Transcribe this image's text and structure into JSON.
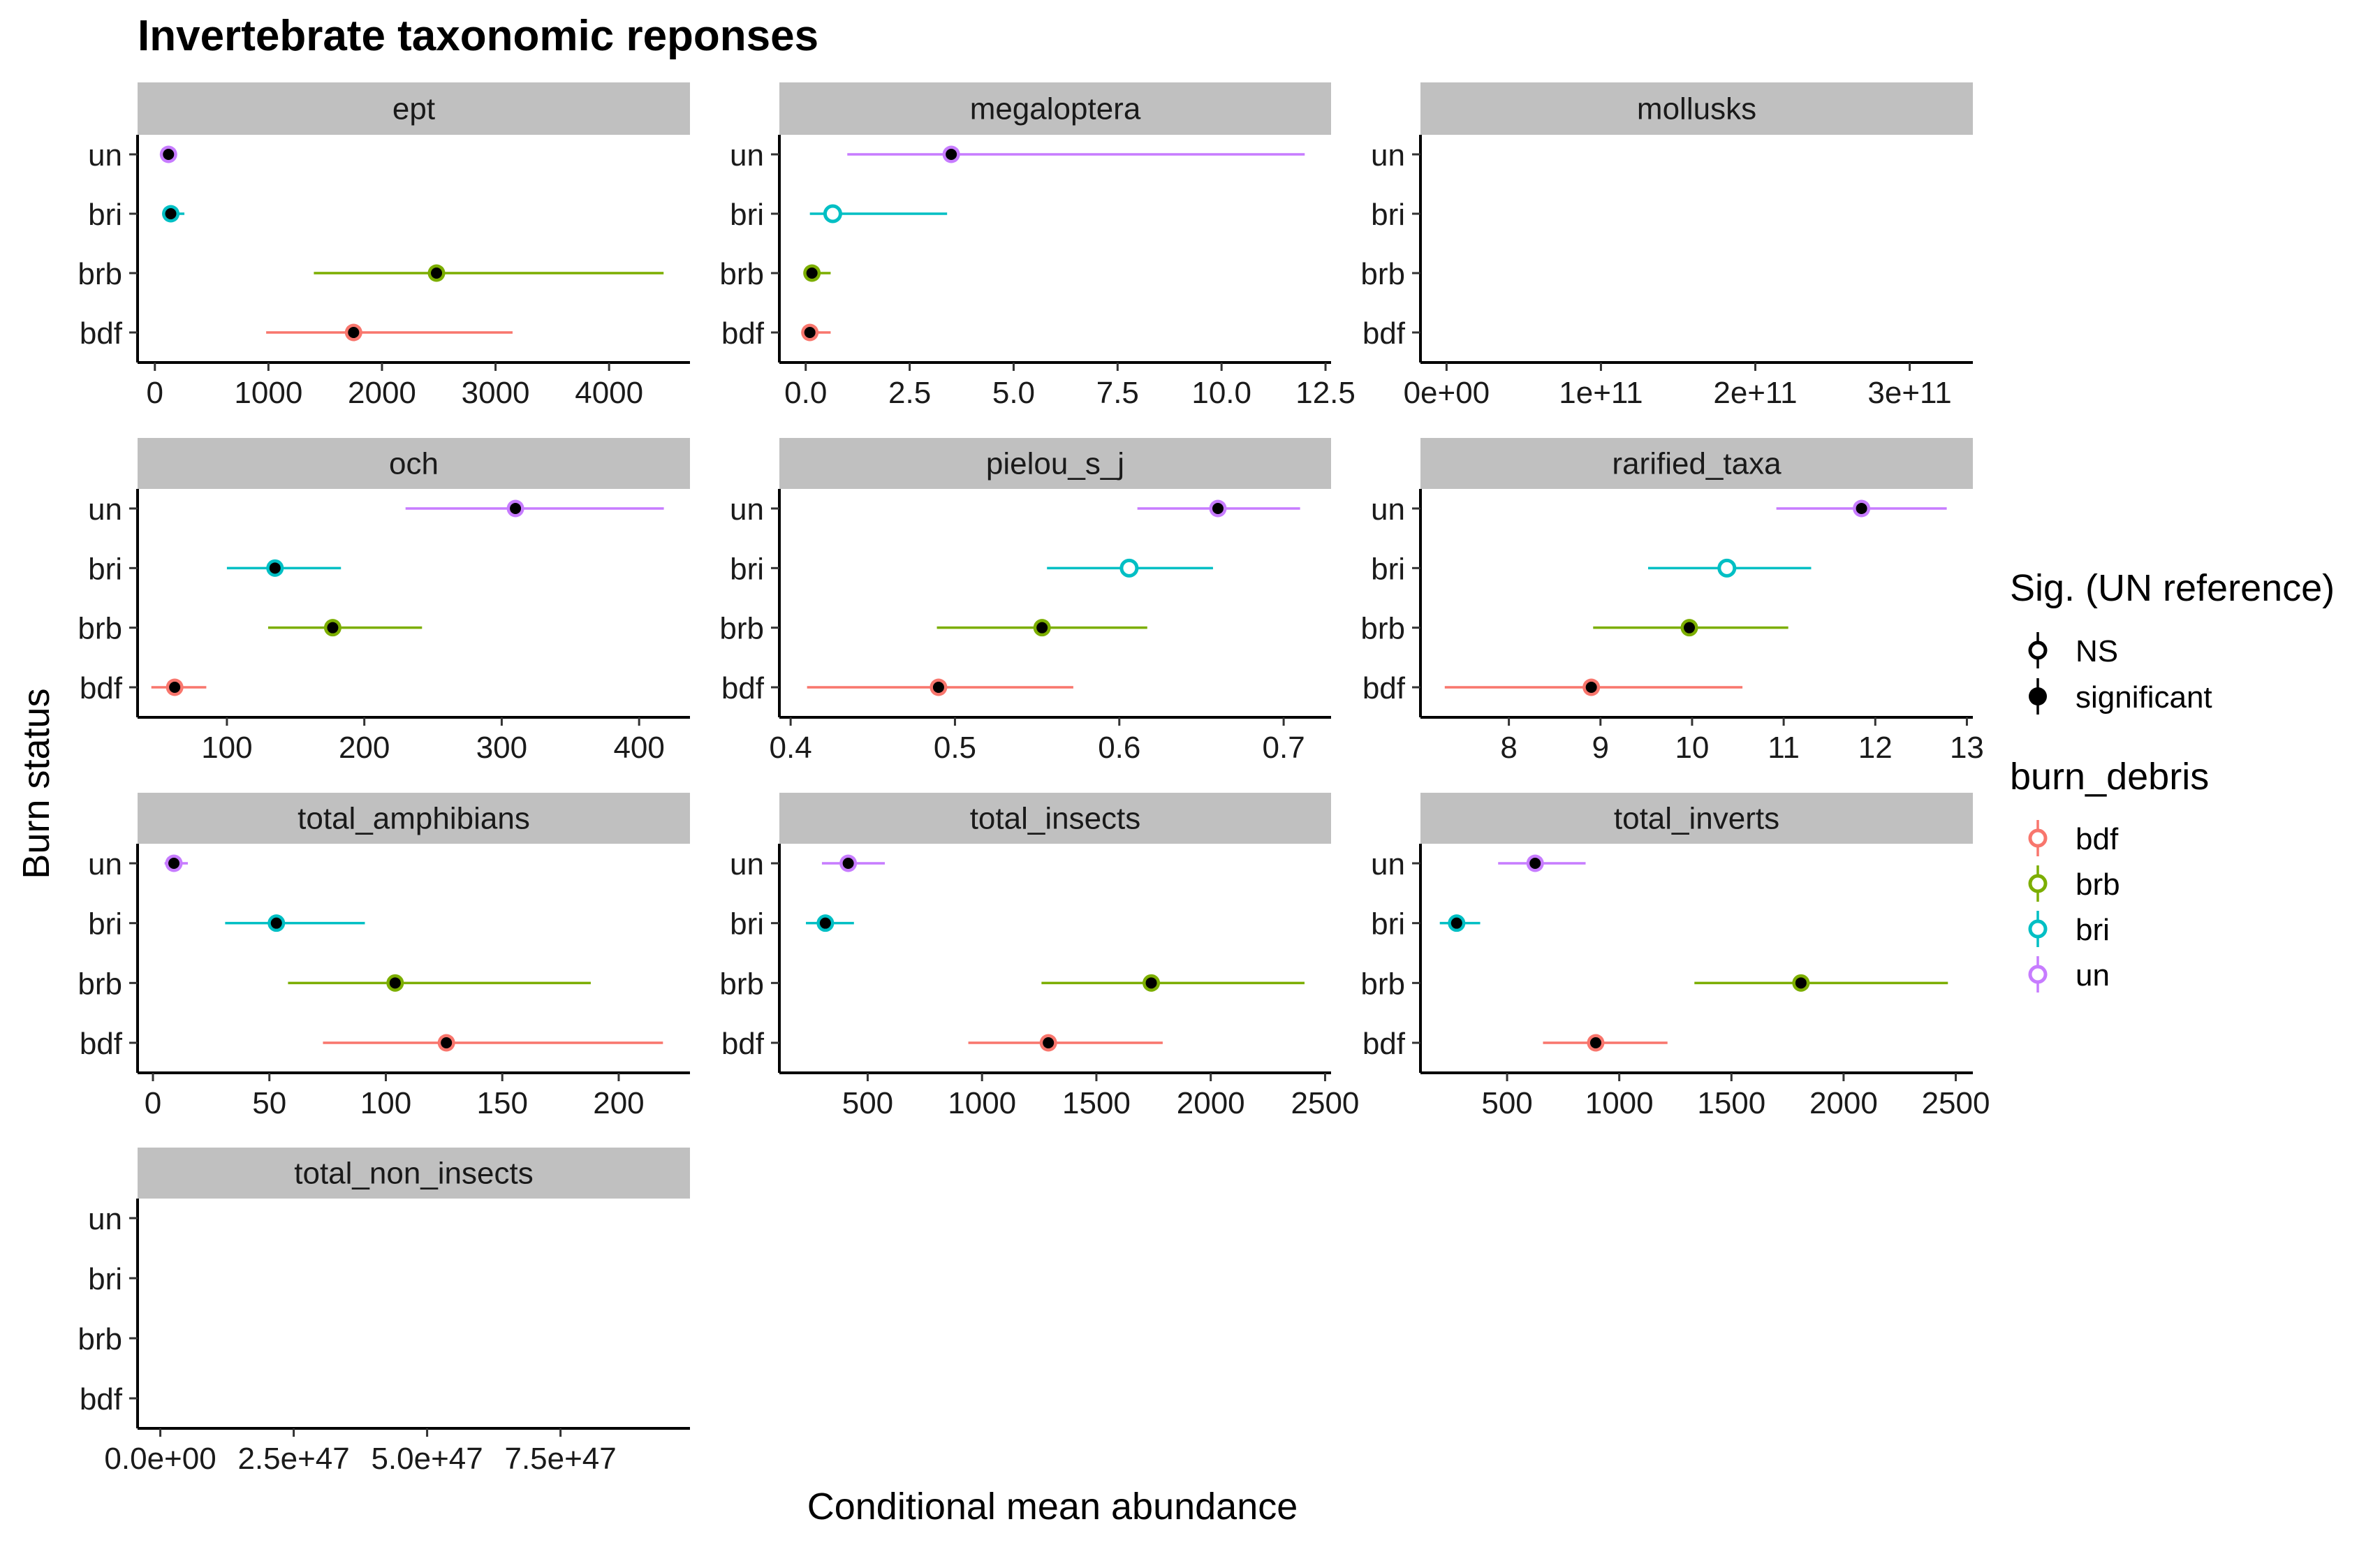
{
  "chart_data": {
    "type": "scatter",
    "subtype": "point-range forest plot, faceted (free x scales)",
    "title": "Invertebrate taxonomic reponses",
    "xlabel": "Conditional mean abundance",
    "ylabel": "Burn status",
    "categories": [
      "bdf",
      "brb",
      "bri",
      "un"
    ],
    "colors": {
      "bdf": "#F8766D",
      "brb": "#7CAE00",
      "bri": "#00BFC4",
      "un": "#C77CFF"
    },
    "grid": false,
    "legends": [
      {
        "title": "Sig. (UN reference)",
        "position": "right",
        "entries": [
          {
            "label": "NS",
            "shape": "open-circle"
          },
          {
            "label": "significant",
            "shape": "filled-circle"
          }
        ]
      },
      {
        "title": "burn_debris",
        "position": "right",
        "entries": [
          {
            "label": "bdf"
          },
          {
            "label": "brb"
          },
          {
            "label": "bri"
          },
          {
            "label": "un"
          }
        ]
      }
    ],
    "facets": [
      {
        "name": "ept",
        "xlim": [
          -140,
          4700
        ],
        "xticks": [
          {
            "v": 0,
            "label": "0"
          },
          {
            "v": 1000,
            "label": "1000"
          },
          {
            "v": 2000,
            "label": "2000"
          },
          {
            "v": 3000,
            "label": "3000"
          },
          {
            "v": 4000,
            "label": "4000"
          }
        ],
        "points": [
          {
            "group": "bdf",
            "mean": 1750,
            "lo": 980,
            "hi": 3150,
            "sig": true
          },
          {
            "group": "brb",
            "mean": 2480,
            "lo": 1400,
            "hi": 4480,
            "sig": true
          },
          {
            "group": "bri",
            "mean": 140,
            "lo": 100,
            "hi": 260,
            "sig": true
          },
          {
            "group": "un",
            "mean": 120,
            "lo": 90,
            "hi": 170,
            "sig": true
          }
        ]
      },
      {
        "name": "megaloptera",
        "xlim": [
          -0.6,
          12.6
        ],
        "xticks": [
          {
            "v": 0,
            "label": "0.0"
          },
          {
            "v": 2.5,
            "label": "2.5"
          },
          {
            "v": 5,
            "label": "5.0"
          },
          {
            "v": 7.5,
            "label": "7.5"
          },
          {
            "v": 10,
            "label": "10.0"
          },
          {
            "v": 12.5,
            "label": "12.5"
          }
        ],
        "points": [
          {
            "group": "bdf",
            "mean": 0.1,
            "lo": 0.0,
            "hi": 0.6,
            "sig": true
          },
          {
            "group": "brb",
            "mean": 0.15,
            "lo": 0.02,
            "hi": 0.6,
            "sig": true
          },
          {
            "group": "bri",
            "mean": 0.65,
            "lo": 0.1,
            "hi": 3.4,
            "sig": false
          },
          {
            "group": "un",
            "mean": 3.5,
            "lo": 1.0,
            "hi": 12.0,
            "sig": true
          }
        ]
      },
      {
        "name": "mollusks",
        "xlim": [
          -16000000000.0,
          340000000000.0
        ],
        "xticks": [
          {
            "v": 0,
            "label": "0e+00"
          },
          {
            "v": 100000000000.0,
            "label": "1e+11"
          },
          {
            "v": 200000000000.0,
            "label": "2e+11"
          },
          {
            "v": 300000000000.0,
            "label": "3e+11"
          }
        ],
        "points": []
      },
      {
        "name": "och",
        "xlim": [
          36,
          436
        ],
        "xticks": [
          {
            "v": 100,
            "label": "100"
          },
          {
            "v": 200,
            "label": "200"
          },
          {
            "v": 300,
            "label": "300"
          },
          {
            "v": 400,
            "label": "400"
          }
        ],
        "points": [
          {
            "group": "bdf",
            "mean": 62,
            "lo": 45,
            "hi": 85,
            "sig": true
          },
          {
            "group": "brb",
            "mean": 177,
            "lo": 130,
            "hi": 242,
            "sig": true
          },
          {
            "group": "bri",
            "mean": 135,
            "lo": 100,
            "hi": 183,
            "sig": true
          },
          {
            "group": "un",
            "mean": 310,
            "lo": 230,
            "hi": 418,
            "sig": true
          }
        ]
      },
      {
        "name": "pielou_s_j",
        "xlim": [
          0.394,
          0.728
        ],
        "xticks": [
          {
            "v": 0.4,
            "label": "0.4"
          },
          {
            "v": 0.5,
            "label": "0.5"
          },
          {
            "v": 0.6,
            "label": "0.6"
          },
          {
            "v": 0.7,
            "label": "0.7"
          }
        ],
        "points": [
          {
            "group": "bdf",
            "mean": 0.49,
            "lo": 0.41,
            "hi": 0.572,
            "sig": true
          },
          {
            "group": "brb",
            "mean": 0.553,
            "lo": 0.489,
            "hi": 0.617,
            "sig": true
          },
          {
            "group": "bri",
            "mean": 0.606,
            "lo": 0.556,
            "hi": 0.657,
            "sig": false
          },
          {
            "group": "un",
            "mean": 0.66,
            "lo": 0.611,
            "hi": 0.71,
            "sig": true
          }
        ]
      },
      {
        "name": "rarified_taxa",
        "xlim": [
          7.05,
          13.05
        ],
        "xticks": [
          {
            "v": 8,
            "label": "8"
          },
          {
            "v": 9,
            "label": "9"
          },
          {
            "v": 10,
            "label": "10"
          },
          {
            "v": 11,
            "label": "11"
          },
          {
            "v": 12,
            "label": "12"
          },
          {
            "v": 13,
            "label": "13"
          }
        ],
        "points": [
          {
            "group": "bdf",
            "mean": 8.9,
            "lo": 7.3,
            "hi": 10.55,
            "sig": true
          },
          {
            "group": "brb",
            "mean": 9.97,
            "lo": 8.92,
            "hi": 11.05,
            "sig": true
          },
          {
            "group": "bri",
            "mean": 10.38,
            "lo": 9.52,
            "hi": 11.3,
            "sig": false
          },
          {
            "group": "un",
            "mean": 11.85,
            "lo": 10.92,
            "hi": 12.78,
            "sig": true
          }
        ]
      },
      {
        "name": "total_amphibians",
        "xlim": [
          -6,
          230
        ],
        "xticks": [
          {
            "v": 0,
            "label": "0"
          },
          {
            "v": 50,
            "label": "50"
          },
          {
            "v": 100,
            "label": "100"
          },
          {
            "v": 150,
            "label": "150"
          },
          {
            "v": 200,
            "label": "200"
          }
        ],
        "points": [
          {
            "group": "bdf",
            "mean": 126,
            "lo": 73,
            "hi": 219,
            "sig": true
          },
          {
            "group": "brb",
            "mean": 104,
            "lo": 58,
            "hi": 188,
            "sig": true
          },
          {
            "group": "bri",
            "mean": 53,
            "lo": 31,
            "hi": 91,
            "sig": true
          },
          {
            "group": "un",
            "mean": 9,
            "lo": 5,
            "hi": 15,
            "sig": true
          }
        ]
      },
      {
        "name": "total_insects",
        "xlim": [
          120,
          2520
        ],
        "xticks": [
          {
            "v": 500,
            "label": "500"
          },
          {
            "v": 1000,
            "label": "1000"
          },
          {
            "v": 1500,
            "label": "1500"
          },
          {
            "v": 2000,
            "label": "2000"
          },
          {
            "v": 2500,
            "label": "2500"
          }
        ],
        "points": [
          {
            "group": "bdf",
            "mean": 1290,
            "lo": 940,
            "hi": 1790,
            "sig": true
          },
          {
            "group": "brb",
            "mean": 1740,
            "lo": 1260,
            "hi": 2410,
            "sig": true
          },
          {
            "group": "bri",
            "mean": 315,
            "lo": 230,
            "hi": 440,
            "sig": true
          },
          {
            "group": "un",
            "mean": 415,
            "lo": 300,
            "hi": 575,
            "sig": true
          }
        ]
      },
      {
        "name": "total_inverts",
        "xlim": [
          120,
          2570
        ],
        "xticks": [
          {
            "v": 500,
            "label": "500"
          },
          {
            "v": 1000,
            "label": "1000"
          },
          {
            "v": 1500,
            "label": "1500"
          },
          {
            "v": 2000,
            "label": "2000"
          },
          {
            "v": 2500,
            "label": "2500"
          }
        ],
        "points": [
          {
            "group": "bdf",
            "mean": 895,
            "lo": 660,
            "hi": 1215,
            "sig": true
          },
          {
            "group": "brb",
            "mean": 1810,
            "lo": 1335,
            "hi": 2465,
            "sig": true
          },
          {
            "group": "bri",
            "mean": 275,
            "lo": 200,
            "hi": 380,
            "sig": true
          },
          {
            "group": "un",
            "mean": 625,
            "lo": 460,
            "hi": 850,
            "sig": true
          }
        ]
      },
      {
        "name": "total_non_insects",
        "xlim": [
          -4e+46,
          9.9e+47
        ],
        "xticks": [
          {
            "v": 0,
            "label": "0.0e+00"
          },
          {
            "v": 2.5e+47,
            "label": "2.5e+47"
          },
          {
            "v": 5e+47,
            "label": "5.0e+47"
          },
          {
            "v": 7.5e+47,
            "label": "7.5e+47"
          }
        ],
        "points": []
      }
    ]
  }
}
